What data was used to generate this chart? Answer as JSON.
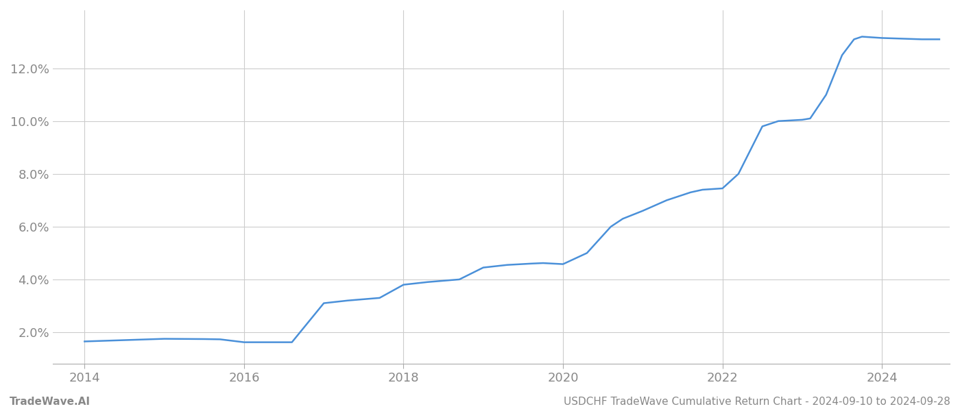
{
  "x_years": [
    2014.0,
    2014.7,
    2015.0,
    2015.5,
    2015.7,
    2016.0,
    2016.1,
    2016.6,
    2017.0,
    2017.3,
    2017.7,
    2018.0,
    2018.3,
    2018.7,
    2019.0,
    2019.3,
    2019.6,
    2019.75,
    2020.0,
    2020.3,
    2020.6,
    2020.75,
    2021.0,
    2021.3,
    2021.6,
    2021.75,
    2022.0,
    2022.2,
    2022.5,
    2022.7,
    2023.0,
    2023.1,
    2023.3,
    2023.5,
    2023.65,
    2023.75,
    2024.0,
    2024.5,
    2024.72
  ],
  "y_values": [
    1.65,
    1.72,
    1.75,
    1.74,
    1.73,
    1.62,
    1.62,
    1.62,
    3.1,
    3.2,
    3.3,
    3.8,
    3.9,
    4.0,
    4.45,
    4.55,
    4.6,
    4.62,
    4.58,
    5.0,
    6.0,
    6.3,
    6.6,
    7.0,
    7.3,
    7.4,
    7.45,
    8.0,
    9.8,
    10.0,
    10.05,
    10.1,
    11.0,
    12.5,
    13.1,
    13.2,
    13.15,
    13.1,
    13.1
  ],
  "line_color": "#4a90d9",
  "line_width": 1.8,
  "xlim": [
    2013.6,
    2024.85
  ],
  "ylim": [
    0.8,
    14.2
  ],
  "yticks": [
    2.0,
    4.0,
    6.0,
    8.0,
    10.0,
    12.0
  ],
  "xticks": [
    2014,
    2016,
    2018,
    2020,
    2022,
    2024
  ],
  "grid_color": "#cccccc",
  "background_color": "#ffffff",
  "footer_left": "TradeWave.AI",
  "footer_right": "USDCHF TradeWave Cumulative Return Chart - 2024-09-10 to 2024-09-28",
  "tick_color": "#888888",
  "tick_fontsize": 13,
  "footer_fontsize": 11
}
